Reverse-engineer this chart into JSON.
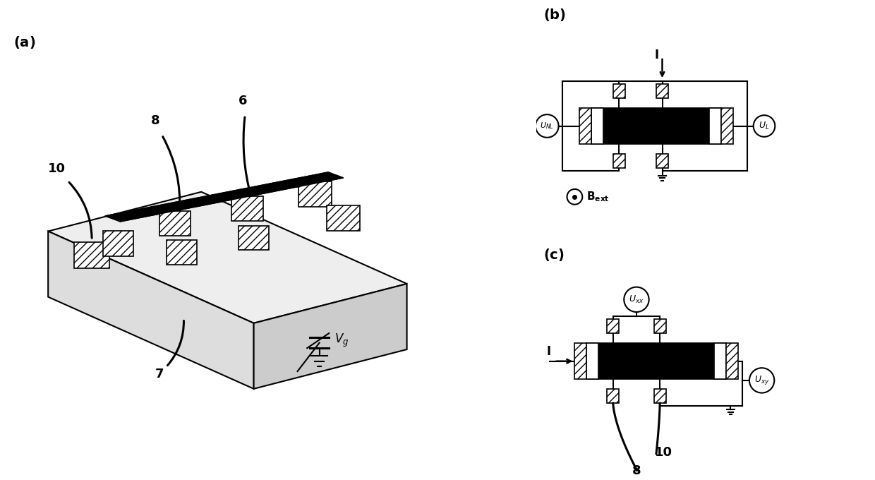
{
  "bg_color": "#ffffff",
  "panel_a_label": "(a)",
  "panel_b_label": "(b)",
  "panel_c_label": "(c)",
  "label_6": "6",
  "label_7": "7",
  "label_8": "8",
  "label_10": "10",
  "font_size_panel": 14,
  "font_size_num": 13,
  "hatch": "///"
}
